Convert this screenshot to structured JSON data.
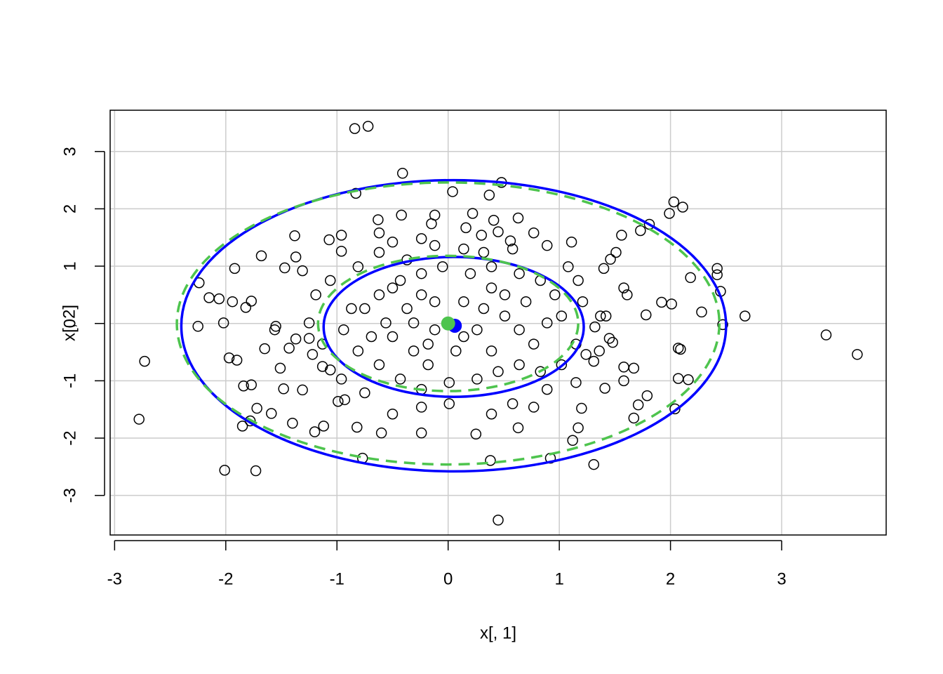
{
  "chart_data": {
    "type": "scatter",
    "xlabel": "x[, 1]",
    "ylabel": "x[, 2]",
    "xlim": [
      -3.04,
      3.94
    ],
    "ylim": [
      -3.69,
      3.72
    ],
    "xticks": [
      -3,
      -2,
      -1,
      0,
      1,
      2,
      3
    ],
    "yticks": [
      -3,
      -2,
      -1,
      0,
      1,
      2,
      3
    ],
    "grid": true,
    "series": [
      {
        "color": "#000000",
        "marker": "open-circle",
        "x": [
          -0.84,
          -0.72,
          -0.41,
          0.48,
          0.04,
          -0.83,
          0.37,
          2.03,
          2.11,
          1.99,
          1.81,
          1.73,
          0.63,
          0.41,
          0.22,
          -0.12,
          -0.42,
          -0.63,
          -0.62,
          -1.38,
          -0.96,
          -1.07,
          1.56,
          0.77,
          0.56,
          -0.15,
          0.16,
          0.3,
          0.45,
          -1.68,
          -1.37,
          -0.96,
          1.51,
          1.46,
          -1.92,
          -1.47,
          -1.31,
          1.4,
          2.42,
          2.42,
          2.18,
          -2.24,
          1.17,
          2.45,
          -2.15,
          -2.06,
          -1.94,
          -1.77,
          -1.82,
          1.92,
          2.01,
          2.28,
          1.78,
          -2.25,
          -2.02,
          2.47,
          2.67,
          3.4,
          3.68,
          -2.73,
          -2.78,
          -1.97,
          -1.9,
          -1.65,
          -1.84,
          -1.77,
          -1.72,
          -1.59,
          -1.85,
          -1.78,
          -1.4,
          -1.12,
          -2.01,
          -1.73,
          -0.77,
          0.38,
          0.92,
          1.12,
          1.31,
          0.45,
          2.04,
          1.67,
          1.71,
          1.79,
          2.07,
          2.16,
          2.07,
          2.09,
          1.58,
          1.67,
          1.58,
          1.41,
          1.2,
          1.17,
          0.63,
          0.25,
          -0.24,
          -0.6,
          -0.82,
          -1.2,
          -1.48,
          -1.31,
          -1.51,
          -1.56,
          -1.55,
          -1.43,
          -1.37,
          -1.25,
          -1.22,
          -1.13,
          -1.06,
          -0.96,
          -0.99,
          -0.93,
          1.31,
          1.36,
          1.45,
          1.48,
          1.32,
          1.42,
          1.37,
          1.58,
          1.61,
          -0.24,
          -0.5,
          -0.75,
          -0.5,
          -0.31,
          -0.18,
          -0.12,
          0.14,
          0.32,
          0.51,
          0.64,
          0.77,
          0.89,
          1.02,
          0.96,
          0.83,
          0.64,
          0.39,
          0.2,
          -0.05,
          -0.24,
          -0.43,
          -0.62,
          -0.87,
          -0.94,
          -0.81,
          -0.62,
          -0.43,
          -0.24,
          0.01,
          0.26,
          0.45,
          0.64,
          0.83,
          1.02,
          1.15,
          1.21,
          1.08,
          0.07,
          -0.12,
          -0.37,
          0.26,
          0.39,
          0.14,
          -0.56,
          -0.69,
          -0.31,
          -0.18,
          0.51,
          0.7,
          0.39,
          -0.37,
          -0.62,
          -0.12,
          0.14,
          0.32,
          0.58,
          0.89,
          1.11,
          -0.24,
          -0.5,
          -0.81,
          -1.06,
          -1.19,
          -1.25,
          -1.13,
          -0.24,
          0.01,
          0.39,
          0.58,
          0.77,
          -0.5,
          -0.75,
          0.89,
          1.15,
          1.24
        ],
        "y": [
          3.4,
          3.44,
          2.62,
          2.46,
          2.3,
          2.27,
          2.24,
          2.12,
          2.03,
          1.92,
          1.73,
          1.62,
          1.84,
          1.8,
          1.92,
          1.89,
          1.89,
          1.81,
          1.58,
          1.53,
          1.54,
          1.46,
          1.54,
          1.58,
          1.44,
          1.74,
          1.67,
          1.54,
          1.6,
          1.18,
          1.16,
          1.26,
          1.24,
          1.12,
          0.96,
          0.97,
          0.92,
          0.96,
          0.96,
          0.85,
          0.8,
          0.71,
          0.75,
          0.56,
          0.45,
          0.43,
          0.38,
          0.39,
          0.28,
          0.37,
          0.34,
          0.2,
          0.15,
          -0.05,
          0.01,
          -0.02,
          0.13,
          -0.2,
          -0.54,
          -0.66,
          -1.67,
          -0.6,
          -0.64,
          -0.44,
          -1.09,
          -1.07,
          -1.48,
          -1.57,
          -1.79,
          -1.7,
          -1.74,
          -1.79,
          -2.56,
          -2.57,
          -2.35,
          -2.39,
          -2.35,
          -2.04,
          -2.46,
          -3.43,
          -1.49,
          -1.65,
          -1.42,
          -1.26,
          -0.96,
          -0.98,
          -0.43,
          -0.45,
          -0.76,
          -0.78,
          -1.0,
          -1.13,
          -1.48,
          -1.82,
          -1.82,
          -1.93,
          -1.91,
          -1.91,
          -1.81,
          -1.89,
          -1.14,
          -1.16,
          -0.78,
          -0.11,
          -0.05,
          -0.43,
          -0.27,
          -0.26,
          -0.54,
          -0.75,
          -0.81,
          -0.97,
          -1.36,
          -1.33,
          -0.66,
          -0.48,
          -0.26,
          -0.33,
          -0.06,
          0.13,
          0.13,
          0.62,
          0.5,
          0.5,
          0.62,
          0.26,
          -0.23,
          -0.48,
          -0.72,
          -0.11,
          0.38,
          0.26,
          0.13,
          -0.11,
          -0.36,
          0.01,
          0.13,
          0.5,
          0.75,
          0.87,
          0.99,
          0.87,
          0.99,
          0.87,
          0.75,
          0.5,
          0.26,
          -0.11,
          -0.48,
          -0.72,
          -0.97,
          -1.15,
          -1.03,
          -0.97,
          -0.84,
          -0.72,
          -0.84,
          -0.72,
          -0.36,
          0.38,
          0.99,
          -0.48,
          0.38,
          0.26,
          -0.11,
          -0.48,
          -0.23,
          0.01,
          -0.23,
          0.01,
          -0.36,
          0.5,
          0.38,
          0.62,
          1.11,
          1.24,
          1.36,
          1.3,
          1.24,
          1.3,
          1.36,
          1.42,
          1.48,
          1.42,
          0.99,
          0.75,
          0.5,
          0.01,
          -0.36,
          -1.46,
          -1.4,
          -1.58,
          -1.4,
          -1.46,
          -1.58,
          -1.21,
          -1.15,
          -1.03,
          -0.54
        ]
      }
    ],
    "ellipses": [
      {
        "cx": 0.05,
        "cy": -0.04,
        "rx": 2.45,
        "ry": 2.54,
        "color": "#0000ff",
        "dashed": false
      },
      {
        "cx": 0.05,
        "cy": -0.06,
        "rx": 1.17,
        "ry": 1.22,
        "color": "#0000ff",
        "dashed": false
      },
      {
        "cx": 0,
        "cy": 0,
        "rx": 2.44,
        "ry": 2.46,
        "color": "#4ec44e",
        "dashed": true
      },
      {
        "cx": 0,
        "cy": 0,
        "rx": 1.17,
        "ry": 1.18,
        "color": "#4ec44e",
        "dashed": true
      }
    ],
    "centers": [
      {
        "x": 0.06,
        "y": -0.04,
        "color": "#0000ff"
      },
      {
        "x": 0,
        "y": 0,
        "color": "#4ec44e"
      }
    ]
  }
}
